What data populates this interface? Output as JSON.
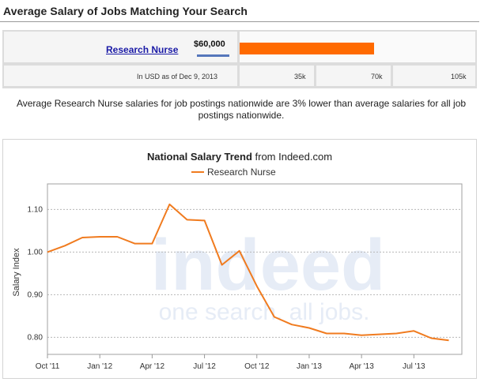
{
  "page": {
    "title": "Average Salary of Jobs Matching Your Search"
  },
  "salary": {
    "job_link": "Research Nurse",
    "amount": "$60,000",
    "value": 60000,
    "scale_max": 105000,
    "note": "In USD as of Dec 9, 2013",
    "ticks": [
      "35k",
      "70k",
      "105k"
    ],
    "bar_color": "#ff6a00"
  },
  "comparison": {
    "text": "Average Research Nurse salaries for job postings nationwide are 3% lower than average salaries for all job postings nationwide."
  },
  "chart_data": {
    "type": "line",
    "title": "National Salary Trend",
    "title_suffix": "from Indeed.com",
    "ylabel": "Salary Index",
    "xlabel": "",
    "ylim": [
      0.76,
      1.16
    ],
    "yticks": [
      0.8,
      0.9,
      1.0,
      1.1
    ],
    "ytick_labels": [
      "0.80",
      "0.90",
      "1.00",
      "1.10"
    ],
    "xticks": [
      "Oct '11",
      "Jan '12",
      "Apr '12",
      "Jul '12",
      "Oct '12",
      "Jan '13",
      "Apr '13",
      "Jul '13"
    ],
    "grid": true,
    "legend": "top-center",
    "watermark": [
      "indeed",
      "one search. all jobs."
    ],
    "series": [
      {
        "name": "Research Nurse",
        "color": "#f07b1f",
        "x": [
          "2011-10",
          "2011-11",
          "2011-12",
          "2012-01",
          "2012-02",
          "2012-03",
          "2012-04",
          "2012-05",
          "2012-06",
          "2012-07",
          "2012-08",
          "2012-09",
          "2012-10",
          "2012-11",
          "2012-12",
          "2013-01",
          "2013-02",
          "2013-03",
          "2013-04",
          "2013-05",
          "2013-06",
          "2013-07",
          "2013-08",
          "2013-09"
        ],
        "values": [
          1.0,
          1.015,
          1.034,
          1.036,
          1.036,
          1.02,
          1.02,
          1.112,
          1.076,
          1.074,
          0.97,
          1.003,
          0.92,
          0.848,
          0.83,
          0.822,
          0.809,
          0.809,
          0.805,
          0.807,
          0.809,
          0.815,
          0.798,
          0.793
        ]
      }
    ]
  }
}
